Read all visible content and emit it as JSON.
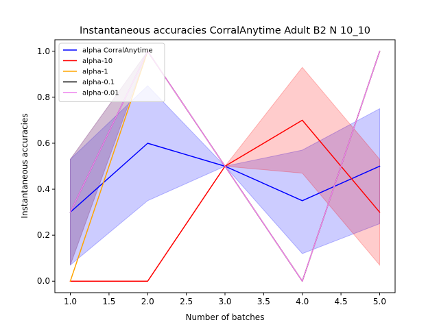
{
  "chart_data": {
    "type": "line",
    "title": "Instantaneous accuracies CorralAnytime Adult B2 N 10_10",
    "xlabel": "Number of batches",
    "ylabel": "Instantaneous accuracies",
    "xlim": [
      0.8,
      5.2
    ],
    "ylim": [
      -0.05,
      1.05
    ],
    "xticks": [
      1.0,
      1.5,
      2.0,
      2.5,
      3.0,
      3.5,
      4.0,
      4.5,
      5.0
    ],
    "xtick_labels": [
      "1.0",
      "1.5",
      "2.0",
      "2.5",
      "3.0",
      "3.5",
      "4.0",
      "4.5",
      "5.0"
    ],
    "yticks": [
      0.0,
      0.2,
      0.4,
      0.6,
      0.8,
      1.0
    ],
    "ytick_labels": [
      "0.0",
      "0.2",
      "0.4",
      "0.6",
      "0.8",
      "1.0"
    ],
    "grid": false,
    "legend_position": "top-left",
    "x": [
      1,
      2,
      3,
      4,
      5
    ],
    "series": [
      {
        "name": "alpha CorralAnytime",
        "color": "#0000ff",
        "values": [
          0.3,
          0.6,
          0.5,
          0.35,
          0.5
        ],
        "band_lower": [
          0.07,
          0.35,
          0.5,
          0.12,
          0.25
        ],
        "band_upper": [
          0.53,
          0.85,
          0.5,
          0.57,
          0.75
        ],
        "band_color": "#0000ff"
      },
      {
        "name": "alpha-10",
        "color": "#ff0000",
        "values": [
          0.0,
          0.0,
          0.5,
          0.7,
          0.3
        ],
        "band_lower": [
          0.0,
          0.0,
          0.5,
          0.47,
          0.07
        ],
        "band_upper": [
          0.0,
          0.0,
          0.5,
          0.93,
          0.53
        ],
        "band_color": "#ff0000"
      },
      {
        "name": "alpha-1",
        "color": "#ffa500",
        "values": [
          0.0,
          1.0,
          0.5,
          0.0,
          1.0
        ],
        "band_lower": [
          0.0,
          1.0,
          0.5,
          0.0,
          1.0
        ],
        "band_upper": [
          0.0,
          1.0,
          0.5,
          0.0,
          1.0
        ],
        "band_color": "#ffa500"
      },
      {
        "name": "alpha-0.1",
        "color": "#000000",
        "values": [
          0.3,
          1.0,
          0.5,
          0.0,
          1.0
        ],
        "band_lower": [
          0.07,
          1.0,
          0.5,
          0.0,
          1.0
        ],
        "band_upper": [
          0.53,
          1.0,
          0.5,
          0.0,
          1.0
        ],
        "band_color": "#000000"
      },
      {
        "name": "alpha-0.01",
        "color": "#ee82ee",
        "values": [
          0.3,
          1.0,
          0.5,
          0.0,
          1.0
        ],
        "band_lower": [
          0.07,
          1.0,
          0.5,
          0.0,
          1.0
        ],
        "band_upper": [
          0.53,
          1.0,
          0.5,
          0.0,
          1.0
        ],
        "band_color": "#ee82ee"
      }
    ]
  }
}
